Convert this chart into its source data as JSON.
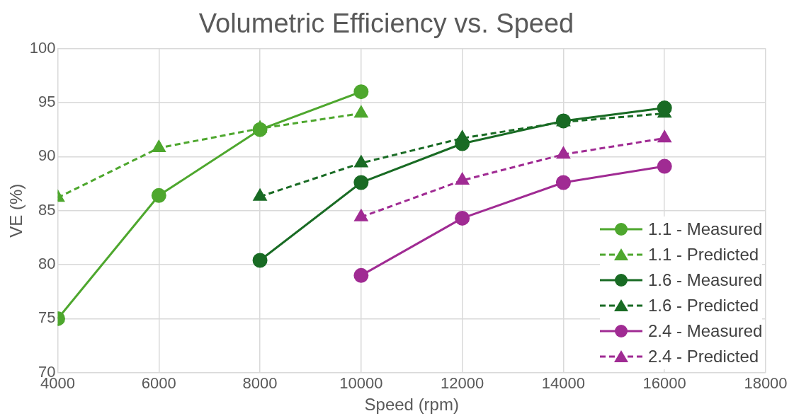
{
  "chart_data": {
    "type": "line",
    "title": "Volumetric Efficiency vs. Speed",
    "xlabel": "Speed (rpm)",
    "ylabel": "VE (%)",
    "xlim": [
      4000,
      18000
    ],
    "xticks": [
      4000,
      6000,
      8000,
      10000,
      12000,
      14000,
      16000,
      18000
    ],
    "ylim": [
      70,
      100
    ],
    "yticks": [
      70,
      75,
      80,
      85,
      90,
      95,
      100
    ],
    "grid": true,
    "legend": "bottom right",
    "series": [
      {
        "name": "1.1 - Measured",
        "color": "#4ea72e",
        "marker": "circle",
        "line_style": "solid",
        "x": [
          4000,
          6000,
          8000,
          10000
        ],
        "values": [
          75.0,
          86.4,
          92.5,
          96.0
        ]
      },
      {
        "name": "1.1 - Predicted",
        "color": "#4ea72e",
        "marker": "triangle",
        "line_style": "dashed",
        "x": [
          4000,
          6000,
          8000,
          10000
        ],
        "values": [
          86.2,
          90.8,
          92.6,
          94.0
        ]
      },
      {
        "name": "1.6 - Measured",
        "color": "#196b24",
        "marker": "circle",
        "line_style": "solid",
        "x": [
          8000,
          10000,
          12000,
          14000,
          16000
        ],
        "values": [
          80.4,
          87.6,
          91.2,
          93.3,
          94.5
        ]
      },
      {
        "name": "1.6 - Predicted",
        "color": "#196b24",
        "marker": "triangle",
        "line_style": "dashed",
        "x": [
          8000,
          10000,
          12000,
          14000,
          16000
        ],
        "values": [
          86.3,
          89.4,
          91.7,
          93.2,
          94.0
        ]
      },
      {
        "name": "2.4 - Measured",
        "color": "#a02b93",
        "marker": "circle",
        "line_style": "solid",
        "x": [
          10000,
          12000,
          14000,
          16000
        ],
        "values": [
          79.0,
          84.3,
          87.6,
          89.1
        ]
      },
      {
        "name": "2.4 - Predicted",
        "color": "#a02b93",
        "marker": "triangle",
        "line_style": "dashed",
        "x": [
          10000,
          12000,
          14000,
          16000
        ],
        "values": [
          84.4,
          87.8,
          90.2,
          91.7
        ]
      }
    ]
  }
}
